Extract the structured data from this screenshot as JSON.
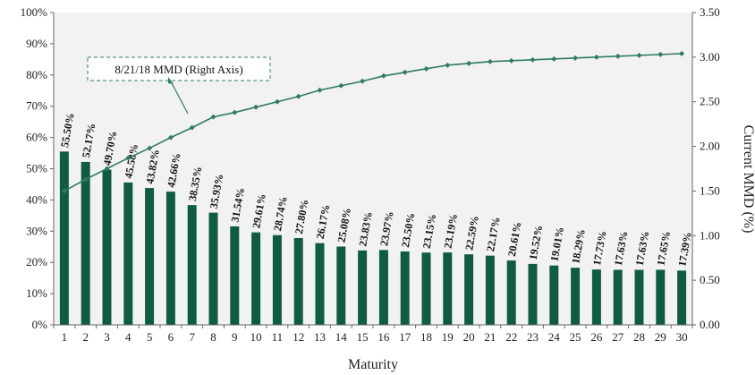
{
  "chart_data": {
    "type": "bar",
    "title": "",
    "xlabel": "Maturity",
    "ylabel": "",
    "y2label": "Current MMD (%)",
    "ylim": [
      0,
      100
    ],
    "y2lim": [
      0,
      3.5
    ],
    "categories": [
      "1",
      "2",
      "3",
      "4",
      "5",
      "6",
      "7",
      "8",
      "9",
      "10",
      "11",
      "12",
      "13",
      "14",
      "15",
      "16",
      "17",
      "18",
      "19",
      "20",
      "21",
      "22",
      "23",
      "24",
      "25",
      "26",
      "27",
      "28",
      "29",
      "30"
    ],
    "y_ticks": [
      "0%",
      "10%",
      "20%",
      "30%",
      "40%",
      "50%",
      "60%",
      "70%",
      "80%",
      "90%",
      "100%"
    ],
    "y2_ticks": [
      "0.00",
      "0.50",
      "1.00",
      "1.50",
      "2.00",
      "2.50",
      "3.00",
      "3.50"
    ],
    "series": [
      {
        "type": "bar",
        "values": [
          55.5,
          52.17,
          49.7,
          45.58,
          43.82,
          42.66,
          38.35,
          35.93,
          31.54,
          29.61,
          28.74,
          27.8,
          26.17,
          25.08,
          23.83,
          23.97,
          23.5,
          23.15,
          23.19,
          22.59,
          22.17,
          20.61,
          19.52,
          19.01,
          18.29,
          17.73,
          17.63,
          17.63,
          17.65,
          17.39
        ],
        "labels": [
          "55.50%",
          "52.17%",
          "49.70%",
          "45.58%",
          "43.82%",
          "42.66%",
          "38.35%",
          "35.93%",
          "31.54%",
          "29.61%",
          "28.74%",
          "27.80%",
          "26.17%",
          "25.08%",
          "23.83%",
          "23.97%",
          "23.50%",
          "23.15%",
          "23.19%",
          "22.59%",
          "22.17%",
          "20.61%",
          "19.52%",
          "19.01%",
          "18.29%",
          "17.73%",
          "17.63%",
          "17.63%",
          "17.65%",
          "17.39%"
        ]
      },
      {
        "type": "line",
        "axis": "right",
        "name": "8/21/18 MMD (Right Axis)",
        "values": [
          1.5,
          1.63,
          1.75,
          1.87,
          1.98,
          2.1,
          2.21,
          2.33,
          2.38,
          2.44,
          2.5,
          2.56,
          2.63,
          2.68,
          2.73,
          2.79,
          2.83,
          2.87,
          2.91,
          2.93,
          2.95,
          2.96,
          2.97,
          2.98,
          2.99,
          3.0,
          3.01,
          3.02,
          3.03,
          3.04
        ]
      }
    ],
    "colors": {
      "bar": "#0f5c45",
      "line": "#2e7d5b",
      "plot_bg": "#f2f2f2",
      "annotation_border": "#2e7d5b"
    },
    "grid": false,
    "legend": "annotation-callout"
  }
}
